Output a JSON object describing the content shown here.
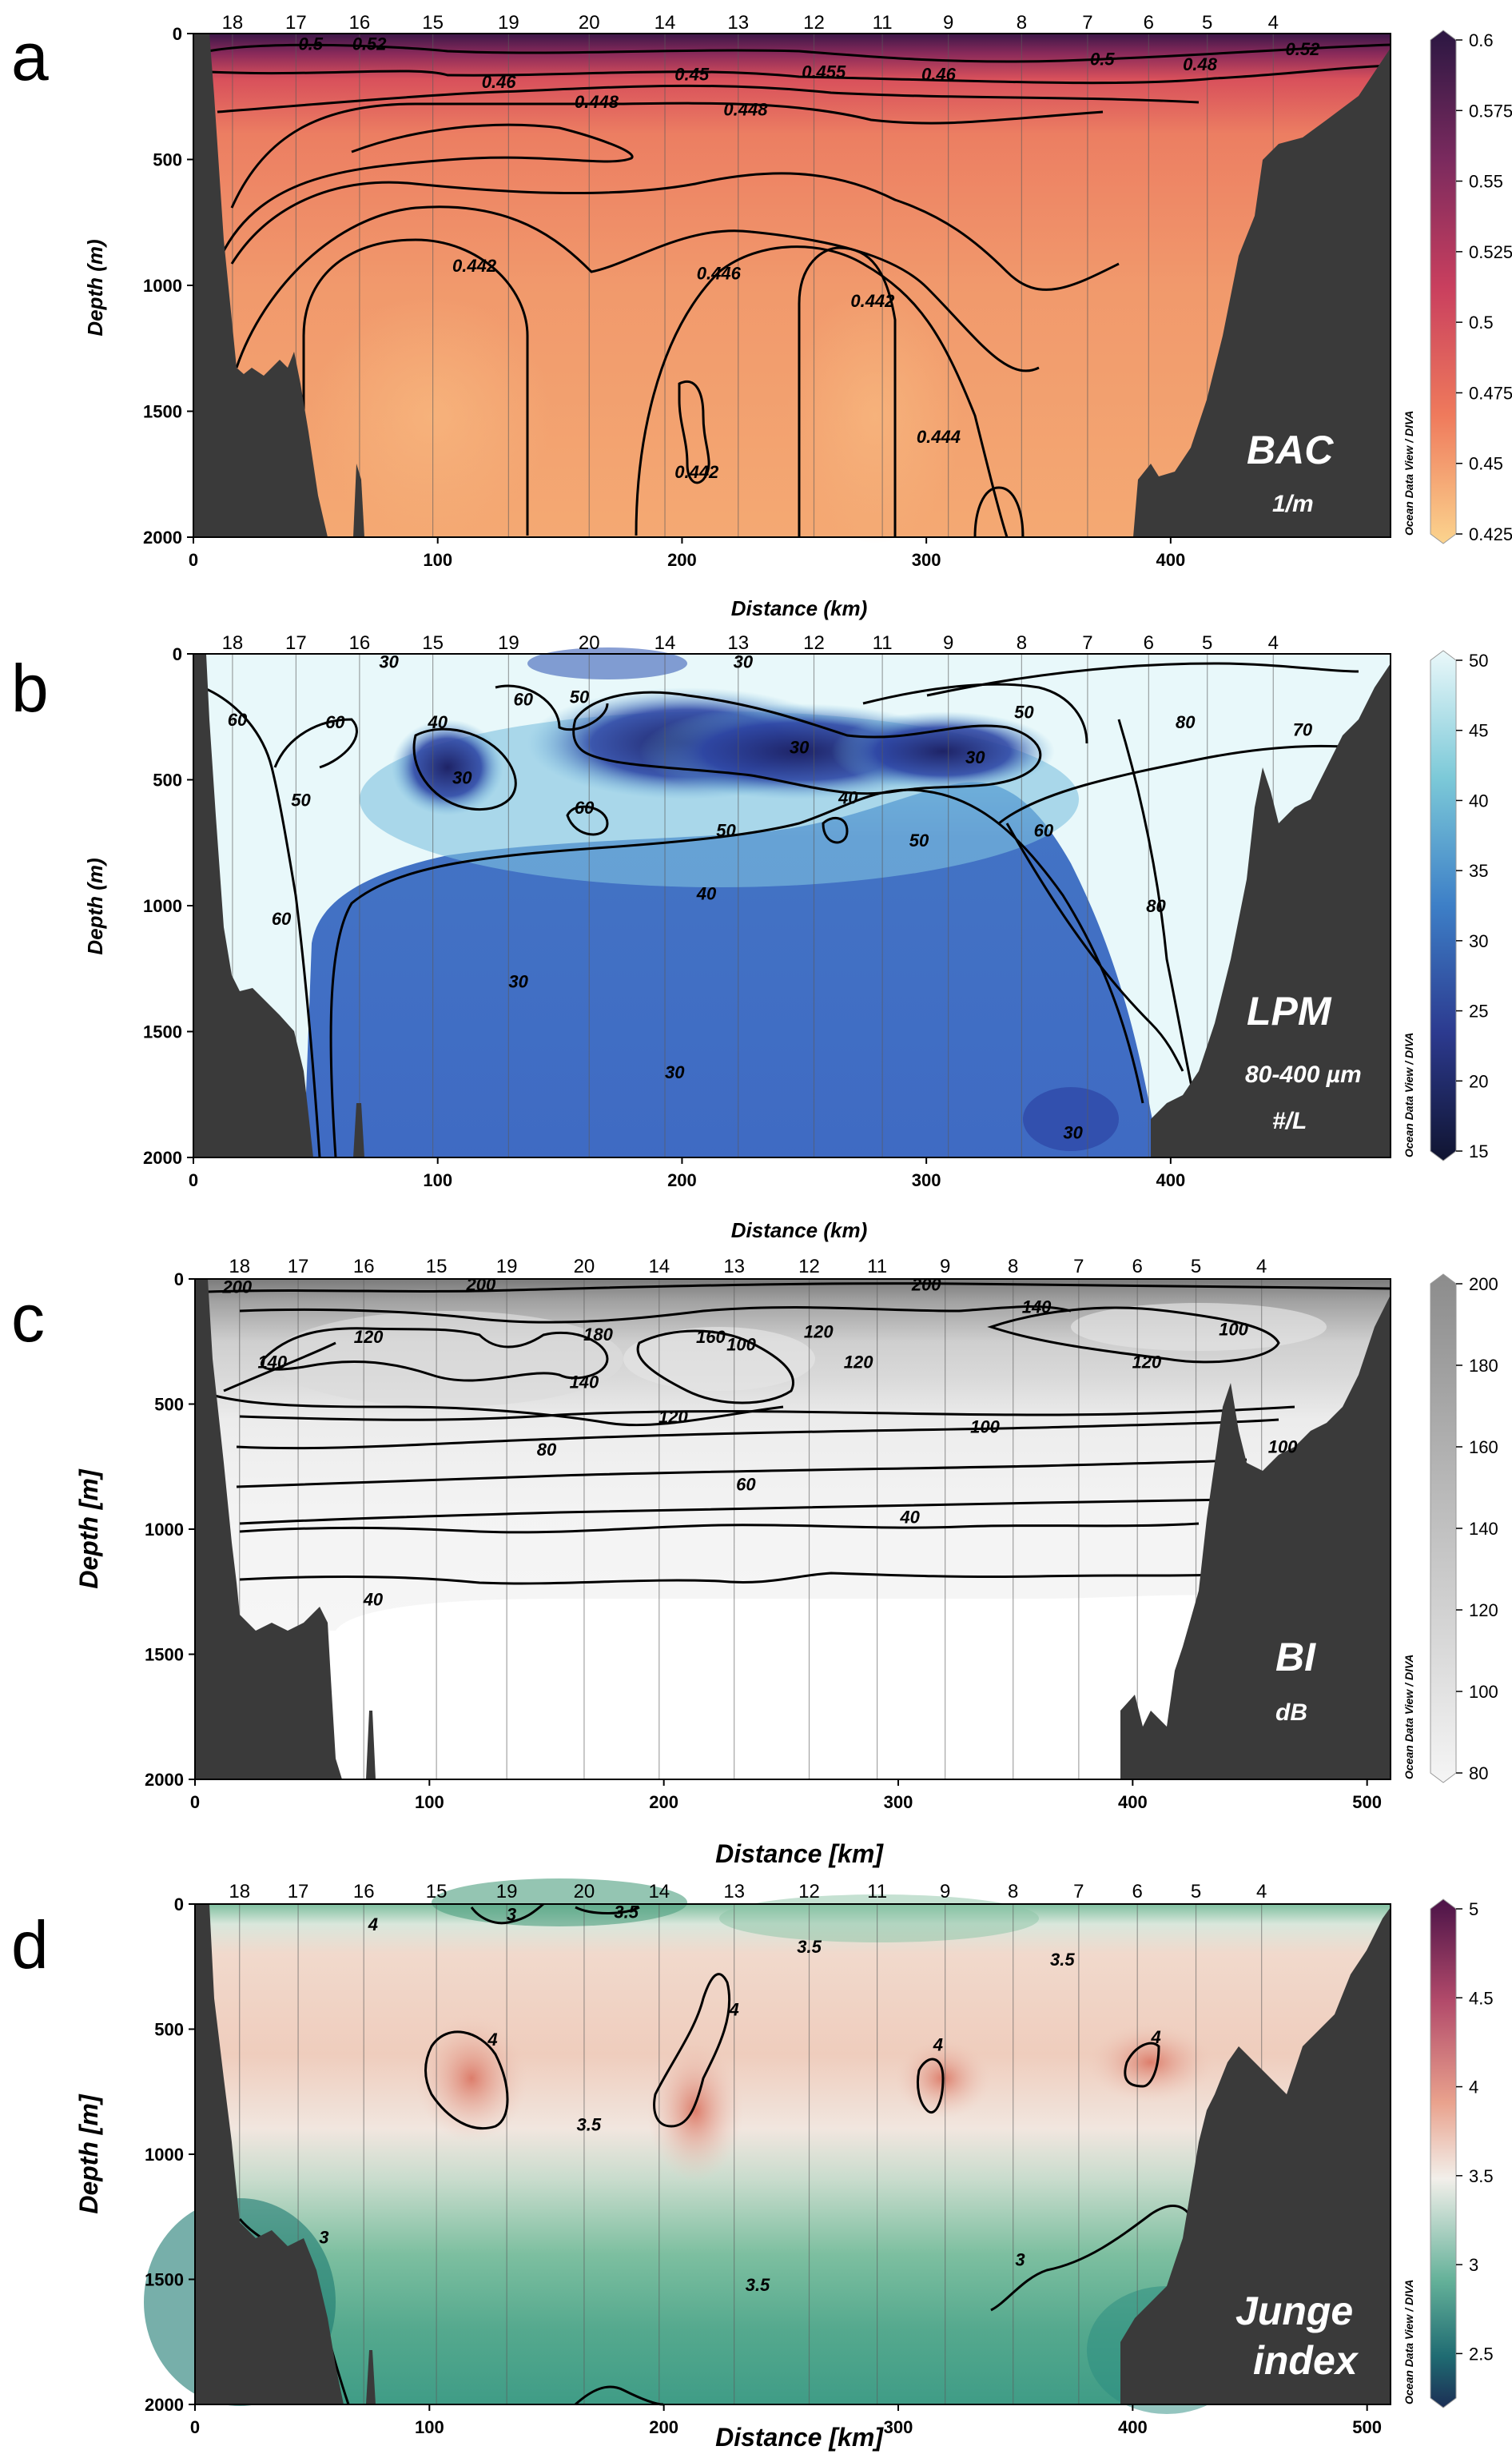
{
  "colors": {
    "terrain": "#3a3a3a",
    "bac_top": "#3b1748",
    "bac_mid": "#d0475a",
    "bac_low": "#f7b77c",
    "lpm_low": "#1c1f4f",
    "lpm_mid": "#3f6cc4",
    "lpm_high": "#e6f7fa",
    "bi_low": "#f2f2f2",
    "bi_high": "#8a8a8a",
    "junge_low": "#1f3b5c",
    "junge_mid": "#2b8c80",
    "junge_neutral": "#f2f0eb",
    "junge_high": "#d96a5f",
    "junge_top": "#5a1b4e"
  },
  "chart_data": [
    {
      "panel": "a",
      "type": "heatmap",
      "variable_label": "BAC",
      "unit_label": "1/m",
      "xlabel": "Distance (km)",
      "ylabel": "Depth (m)",
      "xlim": [
        0,
        490
      ],
      "ylim": [
        2000,
        0
      ],
      "xticks": [
        0,
        100,
        200,
        300,
        400
      ],
      "yticks": [
        0,
        500,
        1000,
        1500,
        2000
      ],
      "ytick_labels": [
        "0",
        "500",
        "1000",
        "1500",
        "2000"
      ],
      "colorbar": {
        "min": 0.425,
        "max": 0.6,
        "ticks": [
          "0.6",
          "0.575",
          "0.55",
          "0.525",
          "0.5",
          "0.475",
          "0.45",
          "0.425"
        ]
      },
      "stations": [
        {
          "label": "18",
          "km": 16
        },
        {
          "label": "17",
          "km": 42
        },
        {
          "label": "16",
          "km": 68
        },
        {
          "label": "15",
          "km": 98
        },
        {
          "label": "19",
          "km": 129
        },
        {
          "label": "20",
          "km": 162
        },
        {
          "label": "14",
          "km": 193
        },
        {
          "label": "13",
          "km": 223
        },
        {
          "label": "12",
          "km": 254
        },
        {
          "label": "11",
          "km": 282
        },
        {
          "label": "9",
          "km": 309
        },
        {
          "label": "8",
          "km": 339
        },
        {
          "label": "7",
          "km": 366
        },
        {
          "label": "6",
          "km": 391
        },
        {
          "label": "5",
          "km": 415
        },
        {
          "label": "4",
          "km": 442
        }
      ],
      "contour_labels": [
        {
          "text": "0.5",
          "km": 48,
          "depth": 40
        },
        {
          "text": "0.52",
          "km": 72,
          "depth": 40
        },
        {
          "text": "0.46",
          "km": 125,
          "depth": 190
        },
        {
          "text": "0.45",
          "km": 204,
          "depth": 160
        },
        {
          "text": "0.455",
          "km": 258,
          "depth": 150
        },
        {
          "text": "0.46",
          "km": 305,
          "depth": 160
        },
        {
          "text": "0.5",
          "km": 372,
          "depth": 100
        },
        {
          "text": "0.48",
          "km": 412,
          "depth": 120
        },
        {
          "text": "0.52",
          "km": 454,
          "depth": 60
        },
        {
          "text": "0.448",
          "km": 165,
          "depth": 270
        },
        {
          "text": "0.448",
          "km": 226,
          "depth": 300
        },
        {
          "text": "0.442",
          "km": 115,
          "depth": 920
        },
        {
          "text": "0.446",
          "km": 215,
          "depth": 950
        },
        {
          "text": "0.442",
          "km": 278,
          "depth": 1060
        },
        {
          "text": "0.442",
          "km": 206,
          "depth": 1740
        },
        {
          "text": "0.444",
          "km": 305,
          "depth": 1600
        }
      ]
    },
    {
      "panel": "b",
      "type": "heatmap",
      "variable_label": "LPM",
      "unit_label": "80-400 µm",
      "unit_label_2": "#/L",
      "xlabel": "Distance (km)",
      "ylabel": "Depth (m)",
      "xlim": [
        0,
        490
      ],
      "ylim": [
        2000,
        0
      ],
      "xticks": [
        0,
        100,
        200,
        300,
        400
      ],
      "yticks": [
        0,
        500,
        1000,
        1500,
        2000
      ],
      "ytick_labels": [
        "0",
        "500",
        "1000",
        "1500",
        "2000"
      ],
      "colorbar": {
        "min": 15,
        "max": 50,
        "ticks": [
          "50",
          "45",
          "40",
          "35",
          "30",
          "25",
          "20",
          "15"
        ]
      },
      "stations": [
        {
          "label": "18",
          "km": 16
        },
        {
          "label": "17",
          "km": 42
        },
        {
          "label": "16",
          "km": 68
        },
        {
          "label": "15",
          "km": 98
        },
        {
          "label": "19",
          "km": 129
        },
        {
          "label": "20",
          "km": 162
        },
        {
          "label": "14",
          "km": 193
        },
        {
          "label": "13",
          "km": 223
        },
        {
          "label": "12",
          "km": 254
        },
        {
          "label": "11",
          "km": 282
        },
        {
          "label": "9",
          "km": 309
        },
        {
          "label": "8",
          "km": 339
        },
        {
          "label": "7",
          "km": 366
        },
        {
          "label": "6",
          "km": 391
        },
        {
          "label": "5",
          "km": 415
        },
        {
          "label": "4",
          "km": 442
        }
      ],
      "contour_labels": [
        {
          "text": "30",
          "km": 80,
          "depth": 30
        },
        {
          "text": "30",
          "km": 225,
          "depth": 30
        },
        {
          "text": "60",
          "km": 18,
          "depth": 260
        },
        {
          "text": "60",
          "km": 58,
          "depth": 270
        },
        {
          "text": "40",
          "km": 100,
          "depth": 270
        },
        {
          "text": "60",
          "km": 135,
          "depth": 180
        },
        {
          "text": "50",
          "km": 158,
          "depth": 170
        },
        {
          "text": "30",
          "km": 110,
          "depth": 490
        },
        {
          "text": "50",
          "km": 44,
          "depth": 580
        },
        {
          "text": "60",
          "km": 160,
          "depth": 610
        },
        {
          "text": "50",
          "km": 218,
          "depth": 700
        },
        {
          "text": "30",
          "km": 248,
          "depth": 370
        },
        {
          "text": "40",
          "km": 268,
          "depth": 570
        },
        {
          "text": "50",
          "km": 297,
          "depth": 740
        },
        {
          "text": "30",
          "km": 320,
          "depth": 410
        },
        {
          "text": "50",
          "km": 340,
          "depth": 230
        },
        {
          "text": "60",
          "km": 348,
          "depth": 700
        },
        {
          "text": "80",
          "km": 406,
          "depth": 270
        },
        {
          "text": "70",
          "km": 454,
          "depth": 300
        },
        {
          "text": "60",
          "km": 36,
          "depth": 1050
        },
        {
          "text": "40",
          "km": 210,
          "depth": 950
        },
        {
          "text": "30",
          "km": 133,
          "depth": 1300
        },
        {
          "text": "30",
          "km": 197,
          "depth": 1660
        },
        {
          "text": "30",
          "km": 360,
          "depth": 1900
        },
        {
          "text": "80",
          "km": 394,
          "depth": 1000
        }
      ]
    },
    {
      "panel": "c",
      "type": "heatmap",
      "variable_label": "BI",
      "unit_label": "dB",
      "xlabel": "Distance [km]",
      "ylabel": "Depth [m]",
      "xlim": [
        0,
        510
      ],
      "ylim": [
        2000,
        0
      ],
      "xticks": [
        0,
        100,
        200,
        300,
        400,
        500
      ],
      "yticks": [
        0,
        500,
        1000,
        1500,
        2000
      ],
      "ytick_labels": [
        "0",
        "500",
        "1000",
        "1500",
        "2000"
      ],
      "colorbar": {
        "min": 80,
        "max": 200,
        "ticks": [
          "200",
          "180",
          "160",
          "140",
          "120",
          "100",
          "80"
        ]
      },
      "stations": [
        {
          "label": "18",
          "km": 19
        },
        {
          "label": "17",
          "km": 44
        },
        {
          "label": "16",
          "km": 72
        },
        {
          "label": "15",
          "km": 103
        },
        {
          "label": "19",
          "km": 133
        },
        {
          "label": "20",
          "km": 166
        },
        {
          "label": "14",
          "km": 198
        },
        {
          "label": "13",
          "km": 230
        },
        {
          "label": "12",
          "km": 262
        },
        {
          "label": "11",
          "km": 291
        },
        {
          "label": "9",
          "km": 320
        },
        {
          "label": "8",
          "km": 349
        },
        {
          "label": "7",
          "km": 377
        },
        {
          "label": "6",
          "km": 402
        },
        {
          "label": "5",
          "km": 427
        },
        {
          "label": "4",
          "km": 455
        }
      ],
      "contour_labels": [
        {
          "text": "200",
          "km": 18,
          "depth": 30
        },
        {
          "text": "200",
          "km": 122,
          "depth": 20
        },
        {
          "text": "180",
          "km": 172,
          "depth": 220
        },
        {
          "text": "160",
          "km": 220,
          "depth": 230
        },
        {
          "text": "200",
          "km": 312,
          "depth": 20
        },
        {
          "text": "140",
          "km": 359,
          "depth": 110
        },
        {
          "text": "120",
          "km": 74,
          "depth": 230
        },
        {
          "text": "140",
          "km": 33,
          "depth": 330
        },
        {
          "text": "120",
          "km": 266,
          "depth": 210
        },
        {
          "text": "100",
          "km": 233,
          "depth": 260
        },
        {
          "text": "120",
          "km": 283,
          "depth": 330
        },
        {
          "text": "120",
          "km": 406,
          "depth": 330
        },
        {
          "text": "100",
          "km": 443,
          "depth": 200
        },
        {
          "text": "140",
          "km": 166,
          "depth": 410
        },
        {
          "text": "120",
          "km": 204,
          "depth": 550
        },
        {
          "text": "100",
          "km": 337,
          "depth": 590
        },
        {
          "text": "80",
          "km": 150,
          "depth": 680
        },
        {
          "text": "60",
          "km": 235,
          "depth": 820
        },
        {
          "text": "40",
          "km": 305,
          "depth": 950
        },
        {
          "text": "100",
          "km": 464,
          "depth": 670
        },
        {
          "text": "40",
          "km": 76,
          "depth": 1280
        }
      ]
    },
    {
      "panel": "d",
      "type": "heatmap",
      "variable_label": "Junge",
      "variable_label_2": "index",
      "xlabel": "Distance [km]",
      "ylabel": "Depth [m]",
      "xlim": [
        0,
        510
      ],
      "ylim": [
        2000,
        0
      ],
      "xticks": [
        0,
        100,
        200,
        300,
        400,
        500
      ],
      "yticks": [
        0,
        500,
        1000,
        1500,
        2000
      ],
      "ytick_labels": [
        "0",
        "500",
        "1000",
        "1500",
        "2000"
      ],
      "colorbar": {
        "min": 2.25,
        "max": 5,
        "ticks": [
          "5",
          "4.5",
          "4",
          "3.5",
          "3",
          "2.5"
        ]
      },
      "stations": [
        {
          "label": "18",
          "km": 19
        },
        {
          "label": "17",
          "km": 44
        },
        {
          "label": "16",
          "km": 72
        },
        {
          "label": "15",
          "km": 103
        },
        {
          "label": "19",
          "km": 133
        },
        {
          "label": "20",
          "km": 166
        },
        {
          "label": "14",
          "km": 198
        },
        {
          "label": "13",
          "km": 230
        },
        {
          "label": "12",
          "km": 262
        },
        {
          "label": "11",
          "km": 291
        },
        {
          "label": "9",
          "km": 320
        },
        {
          "label": "8",
          "km": 349
        },
        {
          "label": "7",
          "km": 377
        },
        {
          "label": "6",
          "km": 402
        },
        {
          "label": "5",
          "km": 427
        },
        {
          "label": "4",
          "km": 455
        }
      ],
      "contour_labels": [
        {
          "text": "3",
          "km": 135,
          "depth": 40
        },
        {
          "text": "3.5",
          "km": 184,
          "depth": 30
        },
        {
          "text": "4",
          "km": 76,
          "depth": 80
        },
        {
          "text": "3.5",
          "km": 262,
          "depth": 170
        },
        {
          "text": "3.5",
          "km": 370,
          "depth": 220
        },
        {
          "text": "4",
          "km": 127,
          "depth": 540
        },
        {
          "text": "4",
          "km": 230,
          "depth": 420
        },
        {
          "text": "4",
          "km": 317,
          "depth": 560
        },
        {
          "text": "4",
          "km": 410,
          "depth": 530
        },
        {
          "text": "3.5",
          "km": 168,
          "depth": 880
        },
        {
          "text": "3",
          "km": 55,
          "depth": 1330
        },
        {
          "text": "3.5",
          "km": 240,
          "depth": 1520
        },
        {
          "text": "3",
          "km": 352,
          "depth": 1420
        }
      ]
    }
  ],
  "odv_text": "Ocean Data View / DIVA"
}
